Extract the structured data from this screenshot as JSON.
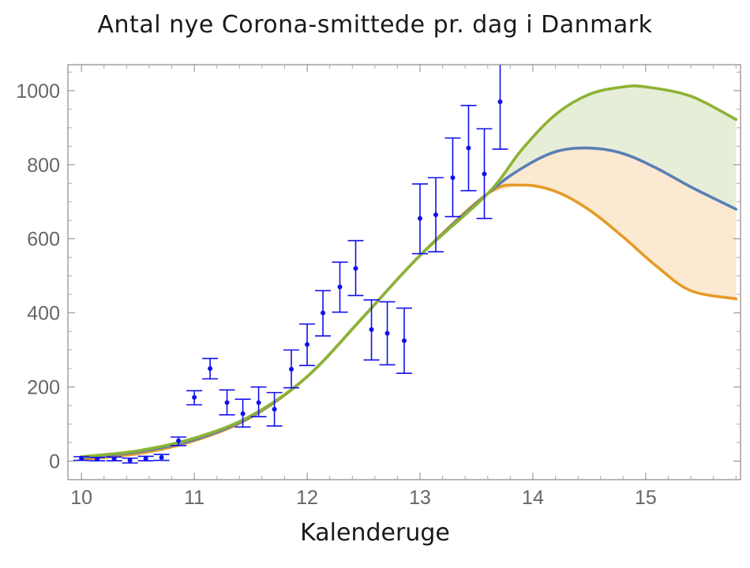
{
  "chart_data": {
    "type": "line",
    "title": "Antal nye Corona-smittede pr. dag i Danmark",
    "xlabel": "Kalenderuge",
    "ylabel": "",
    "xlim": [
      9.88,
      15.84
    ],
    "ylim": [
      -50,
      1070
    ],
    "xticks": [
      10,
      11,
      12,
      13,
      14,
      15
    ],
    "yticks": [
      0,
      200,
      400,
      600,
      800,
      1000
    ],
    "grid": false,
    "legend": "none",
    "observations": {
      "color": "#1010ee",
      "points": [
        {
          "x": 10.0,
          "y": 7,
          "low": 2,
          "high": 12
        },
        {
          "x": 10.14,
          "y": 5,
          "low": 1,
          "high": 10
        },
        {
          "x": 10.29,
          "y": 6,
          "low": 1,
          "high": 11
        },
        {
          "x": 10.43,
          "y": 2,
          "low": -5,
          "high": 8
        },
        {
          "x": 10.57,
          "y": 7,
          "low": 1,
          "high": 13
        },
        {
          "x": 10.71,
          "y": 10,
          "low": 2,
          "high": 18
        },
        {
          "x": 10.86,
          "y": 55,
          "low": 42,
          "high": 65
        },
        {
          "x": 11.0,
          "y": 172,
          "low": 152,
          "high": 190
        },
        {
          "x": 11.14,
          "y": 250,
          "low": 222,
          "high": 277
        },
        {
          "x": 11.29,
          "y": 158,
          "low": 125,
          "high": 192
        },
        {
          "x": 11.43,
          "y": 128,
          "low": 92,
          "high": 167
        },
        {
          "x": 11.57,
          "y": 158,
          "low": 120,
          "high": 200
        },
        {
          "x": 11.71,
          "y": 140,
          "low": 95,
          "high": 185
        },
        {
          "x": 11.86,
          "y": 248,
          "low": 198,
          "high": 300
        },
        {
          "x": 12.0,
          "y": 315,
          "low": 258,
          "high": 370
        },
        {
          "x": 12.14,
          "y": 400,
          "low": 338,
          "high": 460
        },
        {
          "x": 12.29,
          "y": 470,
          "low": 402,
          "high": 537
        },
        {
          "x": 12.43,
          "y": 520,
          "low": 447,
          "high": 595
        },
        {
          "x": 12.57,
          "y": 355,
          "low": 273,
          "high": 435
        },
        {
          "x": 12.71,
          "y": 345,
          "low": 260,
          "high": 430
        },
        {
          "x": 12.86,
          "y": 325,
          "low": 237,
          "high": 413
        },
        {
          "x": 13.0,
          "y": 655,
          "low": 560,
          "high": 748
        },
        {
          "x": 13.14,
          "y": 665,
          "low": 565,
          "high": 765
        },
        {
          "x": 13.29,
          "y": 765,
          "low": 660,
          "high": 872
        },
        {
          "x": 13.43,
          "y": 845,
          "low": 730,
          "high": 960
        },
        {
          "x": 13.57,
          "y": 775,
          "low": 655,
          "high": 897
        },
        {
          "x": 13.71,
          "y": 970,
          "low": 842,
          "high": 1100
        }
      ]
    },
    "series": [
      {
        "color": "#e69b26",
        "x": [
          10.0,
          10.5,
          11.0,
          11.5,
          12.0,
          12.5,
          13.0,
          13.6,
          13.9,
          14.2,
          14.5,
          14.8,
          15.1,
          15.4,
          15.8
        ],
        "y": [
          5,
          20,
          55,
          118,
          228,
          390,
          555,
          722,
          745,
          728,
          678,
          605,
          525,
          460,
          438
        ]
      },
      {
        "color": "#5b7fb4",
        "x": [
          10.0,
          10.5,
          11.0,
          11.5,
          12.0,
          12.5,
          13.0,
          13.6,
          13.9,
          14.2,
          14.5,
          14.8,
          15.1,
          15.4,
          15.8
        ],
        "y": [
          10,
          25,
          58,
          120,
          228,
          390,
          555,
          722,
          790,
          835,
          845,
          830,
          790,
          740,
          680
        ]
      },
      {
        "color": "#8db333",
        "x": [
          10.0,
          10.5,
          11.0,
          11.5,
          12.0,
          12.5,
          13.0,
          13.6,
          13.9,
          14.2,
          14.5,
          14.8,
          15.0,
          15.4,
          15.8
        ],
        "y": [
          12,
          28,
          62,
          122,
          228,
          390,
          555,
          722,
          840,
          935,
          990,
          1010,
          1010,
          985,
          922
        ]
      }
    ],
    "bands": [
      {
        "between": [
          1,
          2
        ],
        "fill": "#e7eed8"
      },
      {
        "between": [
          0,
          1
        ],
        "fill": "#fbe9d2"
      }
    ]
  }
}
